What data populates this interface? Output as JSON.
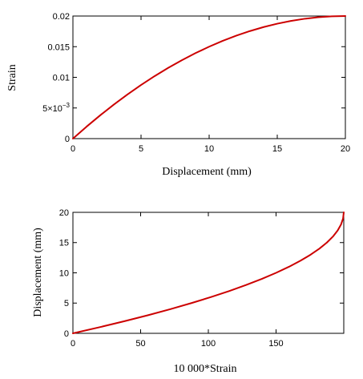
{
  "charts": {
    "top": {
      "xlabel": "Displacement (mm)",
      "ylabel": "Strain",
      "x_ticks": [
        "0",
        "5",
        "10",
        "15",
        "20"
      ],
      "y_tick_0": "0",
      "y_tick_1_mantissa": "5×10",
      "y_tick_1_exp": "−3",
      "y_tick_2": "0.01",
      "y_tick_3": "0.015",
      "y_tick_4": "0.02"
    },
    "bottom": {
      "xlabel": "10 000*Strain",
      "ylabel": "Displacement (mm)",
      "x_ticks": [
        "0",
        "50",
        "100",
        "150"
      ],
      "y_ticks": [
        "0",
        "5",
        "10",
        "15",
        "20"
      ]
    }
  },
  "colors": {
    "curve": "#cc0000"
  },
  "chart_data": [
    {
      "type": "line",
      "xlabel": "Displacement (mm)",
      "ylabel": "Strain",
      "xlim": [
        0,
        20
      ],
      "ylim": [
        0,
        0.02
      ],
      "grid": false,
      "x": [
        0,
        1,
        2,
        3,
        4,
        5,
        6,
        7,
        8,
        9,
        10,
        11,
        12,
        13,
        14,
        15,
        16,
        17,
        18,
        19,
        20
      ],
      "y": [
        0,
        0.00195,
        0.0038,
        0.00555,
        0.0072,
        0.00875,
        0.0102,
        0.01155,
        0.0128,
        0.01395,
        0.015,
        0.01595,
        0.0168,
        0.01755,
        0.0182,
        0.01875,
        0.0192,
        0.01955,
        0.0198,
        0.01995,
        0.02
      ]
    },
    {
      "type": "line",
      "xlabel": "10 000*Strain",
      "ylabel": "Displacement (mm)",
      "xlim": [
        0,
        200
      ],
      "ylim": [
        0,
        20
      ],
      "grid": false,
      "x": [
        0,
        19.5,
        38,
        55.5,
        72,
        87.5,
        102,
        115.5,
        128,
        139.5,
        150,
        159.5,
        168,
        175.5,
        182,
        187.5,
        192,
        195.5,
        198,
        199.5,
        200
      ],
      "y": [
        0,
        1,
        2,
        3,
        4,
        5,
        6,
        7,
        8,
        9,
        10,
        11,
        12,
        13,
        14,
        15,
        16,
        17,
        18,
        19,
        20
      ]
    }
  ]
}
